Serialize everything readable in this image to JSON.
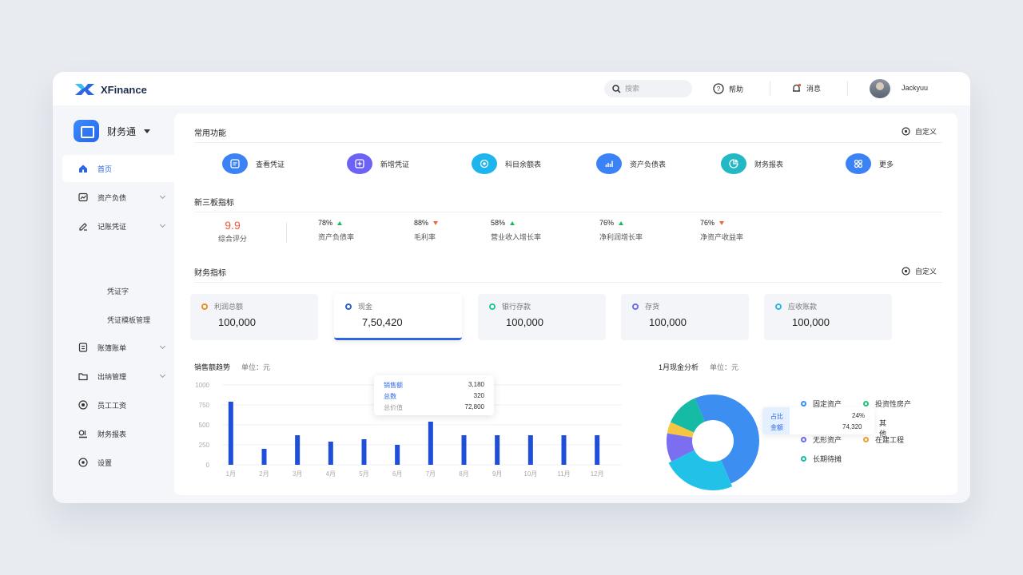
{
  "app": {
    "name": "XFinance"
  },
  "topbar": {
    "search_placeholder": "搜索",
    "help": "帮助",
    "messages": "消息",
    "username": "Jackyuu"
  },
  "sidebar": {
    "brand": "财务通",
    "items": [
      {
        "label": "首页",
        "icon": "home-icon",
        "active": true
      },
      {
        "label": "资产负债",
        "icon": "balance-icon"
      },
      {
        "label": "记账凭证",
        "icon": "voucher-icon"
      },
      {
        "label": "账簿账单",
        "icon": "ledger-icon"
      },
      {
        "label": "出纳管理",
        "icon": "folder-icon"
      },
      {
        "label": "员工工资",
        "icon": "salary-icon"
      },
      {
        "label": "财务报表",
        "icon": "report-icon"
      },
      {
        "label": "设置",
        "icon": "settings-icon"
      }
    ],
    "sub_items": [
      "凭证字",
      "凭证模板管理"
    ]
  },
  "quick_functions": {
    "title": "常用功能",
    "custom": "自定义",
    "items": [
      {
        "label": "查看凭证",
        "color": "#3b82f6"
      },
      {
        "label": "新增凭证",
        "color": "#6c63f6"
      },
      {
        "label": "科目余额表",
        "color": "#1eb4ee"
      },
      {
        "label": "资产负债表",
        "color": "#3b82f6"
      },
      {
        "label": "财务报表",
        "color": "#22b8c4"
      },
      {
        "label": "更多",
        "color": "#3b82f6"
      }
    ]
  },
  "indicators": {
    "title": "新三板指标",
    "score": "9.9",
    "score_label": "综合评分",
    "items": [
      {
        "value": "78%",
        "label": "资产负债率",
        "trend": "up"
      },
      {
        "value": "88%",
        "label": "毛利率",
        "trend": "down"
      },
      {
        "value": "58%",
        "label": "营业收入增长率",
        "trend": "up"
      },
      {
        "value": "76%",
        "label": "净利润增长率",
        "trend": "up"
      },
      {
        "value": "76%",
        "label": "净资产收益率",
        "trend": "down"
      }
    ]
  },
  "financial": {
    "title": "财务指标",
    "custom": "自定义",
    "cards": [
      {
        "label": "利润总额",
        "value": "100,000",
        "color": "#f08a2c"
      },
      {
        "label": "现金",
        "value": "7,50,420",
        "color": "#2c5fd6",
        "active": true
      },
      {
        "label": "银行存款",
        "value": "100,000",
        "color": "#1fc79a"
      },
      {
        "label": "存货",
        "value": "100,000",
        "color": "#6b6ee8"
      },
      {
        "label": "应收账款",
        "value": "100,000",
        "color": "#27b7e8"
      }
    ]
  },
  "sales_chart": {
    "title": "销售额趋势",
    "unit": "单位：元",
    "tooltip": {
      "rows": [
        {
          "name": "销售额",
          "value": "3,180"
        },
        {
          "name": "总数",
          "value": "320"
        },
        {
          "name": "总价值",
          "value": "72,800"
        }
      ]
    }
  },
  "cash_chart": {
    "title": "1月现金分析",
    "unit": "单位：元",
    "tip_labels": [
      "占比",
      "金额"
    ],
    "tip_values": [
      "24%",
      "74,320"
    ],
    "tip_extra": "其他"
  },
  "chart_data": [
    {
      "type": "bar",
      "categories": [
        "1月",
        "2月",
        "3月",
        "4月",
        "5月",
        "6月",
        "7月",
        "8月",
        "9月",
        "10月",
        "11月",
        "12月"
      ],
      "values": [
        790,
        200,
        370,
        290,
        320,
        250,
        540,
        370,
        370,
        370,
        370,
        370
      ],
      "yticks": [
        "1000",
        "750",
        "500",
        "250",
        "0"
      ],
      "ylim": [
        0,
        1000
      ],
      "color": "#1f4fd8",
      "grid": true
    },
    {
      "type": "pie",
      "labels": [
        "固定资产",
        "投资性房产",
        "无形资产",
        "在建工程",
        "长期待摊"
      ],
      "values": [
        50,
        24,
        10,
        4,
        12
      ],
      "colors": [
        "#3c8ef0",
        "#22c2e8",
        "#7b6ef0",
        "#f6c642",
        "#16bba5"
      ],
      "legend_colors": [
        "#3c8ef0",
        "#22c27a",
        "#6b6ee8",
        "#f0a030",
        "#16bba5"
      ]
    }
  ]
}
